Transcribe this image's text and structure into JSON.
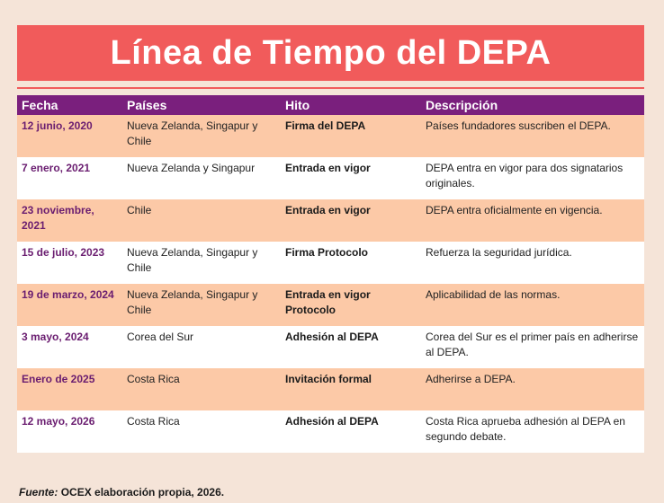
{
  "title": "Línea de Tiempo del DEPA",
  "headers": {
    "fecha": "Fecha",
    "paises": "Países",
    "hito": "Hito",
    "descripcion": "Descripción"
  },
  "rows": [
    {
      "fecha": "12 junio, 2020",
      "paises": "Nueva Zelanda, Singapur y Chile",
      "hito": "Firma del DEPA",
      "descripcion": "Países fundadores suscriben el DEPA."
    },
    {
      "fecha": "7 enero, 2021",
      "paises": "Nueva Zelanda y Singapur",
      "hito": "Entrada en vigor",
      "descripcion": "DEPA entra en vigor para dos signatarios originales."
    },
    {
      "fecha": "23 noviembre, 2021",
      "paises": "Chile",
      "hito": "Entrada en vigor",
      "descripcion": "DEPA entra oficialmente en vigencia."
    },
    {
      "fecha": "15 de julio, 2023",
      "paises": "Nueva Zelanda, Singapur y Chile",
      "hito": "Firma Protocolo",
      "descripcion": "Refuerza la seguridad jurídica."
    },
    {
      "fecha": "19 de marzo, 2024",
      "paises": "Nueva Zelanda, Singapur y Chile",
      "hito": "Entrada en vigor Protocolo",
      "descripcion": "Aplicabilidad de las normas."
    },
    {
      "fecha": "3 mayo, 2024",
      "paises": "Corea del Sur",
      "hito": "Adhesión al DEPA",
      "descripcion": "Corea del Sur es el primer país en adherirse al DEPA."
    },
    {
      "fecha": "Enero de 2025",
      "paises": "Costa Rica",
      "hito": "Invitación formal",
      "descripcion": "Adherirse a DEPA."
    },
    {
      "fecha": "12 mayo, 2026",
      "paises": "Costa Rica",
      "hito": "Adhesión al DEPA",
      "descripcion": "Costa Rica aprueba adhesión al DEPA en segundo debate."
    }
  ],
  "source": {
    "label": "Fuente:",
    "text": "OCEX elaboración propia, 2026."
  },
  "colors": {
    "banner": "#f15b5b",
    "header": "#7a1f7d",
    "odd_row": "#fcc9a7",
    "background": "#f5e4d8"
  }
}
